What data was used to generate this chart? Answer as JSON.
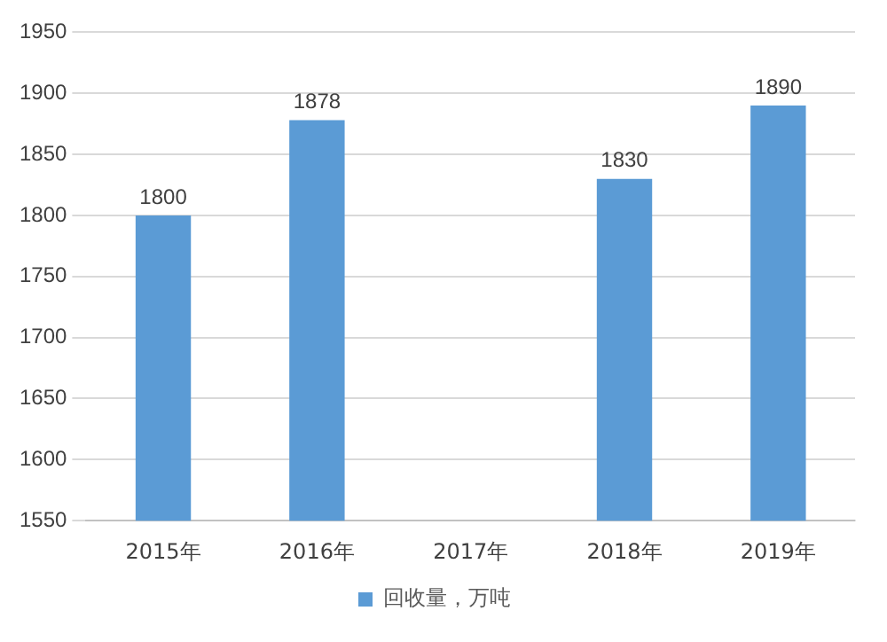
{
  "chart_data": {
    "type": "bar",
    "categories": [
      "2015年",
      "2016年",
      "2017年",
      "2018年",
      "2019年"
    ],
    "series": [
      {
        "name": "回收量，万吨",
        "color": "#5b9bd5",
        "values": [
          1800,
          1878,
          null,
          1830,
          1890
        ],
        "value_labels": [
          "1800",
          "1878",
          null,
          "1830",
          "1890"
        ]
      }
    ],
    "ylim": [
      1550,
      1950
    ],
    "yticks": [
      1550,
      1600,
      1650,
      1700,
      1750,
      1800,
      1850,
      1900,
      1950
    ],
    "grid": "y",
    "legend": "bottom"
  }
}
